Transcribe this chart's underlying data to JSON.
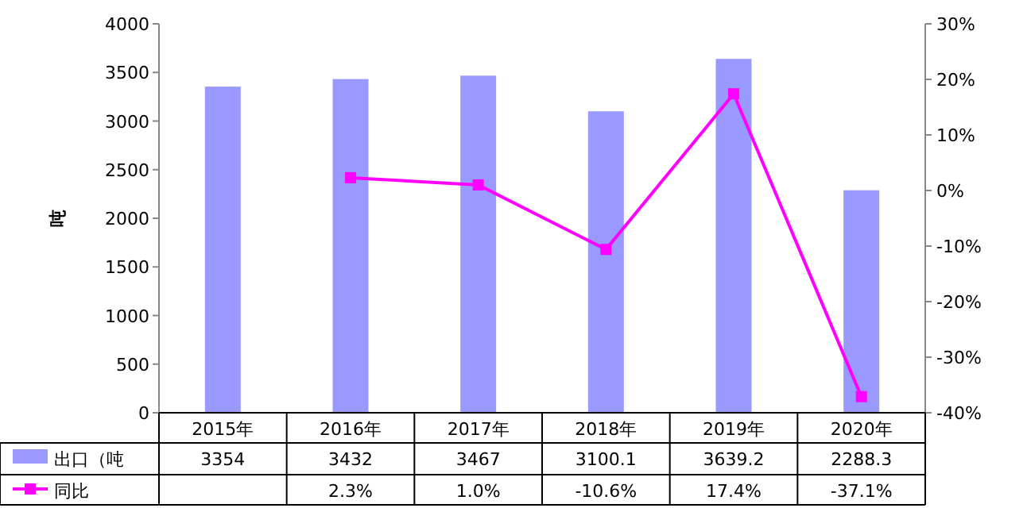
{
  "chart_data": {
    "type": "bar",
    "ylabel": "吨",
    "categories": [
      "2015年",
      "2016年",
      "2017年",
      "2018年",
      "2019年",
      "2020年"
    ],
    "series": [
      {
        "name": "出口（吨",
        "color": "#9999ff",
        "values": [
          3354,
          3432,
          3467,
          3100.1,
          3639.2,
          2288.3
        ],
        "value_labels": [
          "3354",
          "3432",
          "3467",
          "3100.1",
          "3639.2",
          "2288.3"
        ]
      },
      {
        "name": "同比",
        "type": "line",
        "axis": "y2",
        "color": "#ff00ff",
        "values": [
          null,
          2.3,
          1.0,
          -10.6,
          17.4,
          -37.1
        ],
        "value_labels": [
          null,
          "2.3%",
          "1.0%",
          "-10.6%",
          "17.4%",
          "-37.1%"
        ]
      }
    ],
    "ylim": [
      0,
      4000
    ],
    "yticks": [
      0,
      500,
      1000,
      1500,
      2000,
      2500,
      3000,
      3500,
      4000
    ],
    "y2lim": [
      -40,
      30
    ],
    "y2ticks": [
      {
        "value": 30,
        "label": "30%"
      },
      {
        "value": 20,
        "label": "20%"
      },
      {
        "value": 10,
        "label": "10%"
      },
      {
        "value": 0,
        "label": "0%"
      },
      {
        "value": -10,
        "label": "-10%"
      },
      {
        "value": -20,
        "label": "-20%"
      },
      {
        "value": -30,
        "label": "-30%"
      },
      {
        "value": -40,
        "label": "-40%"
      }
    ],
    "marker": "square",
    "legend": "bottom"
  }
}
